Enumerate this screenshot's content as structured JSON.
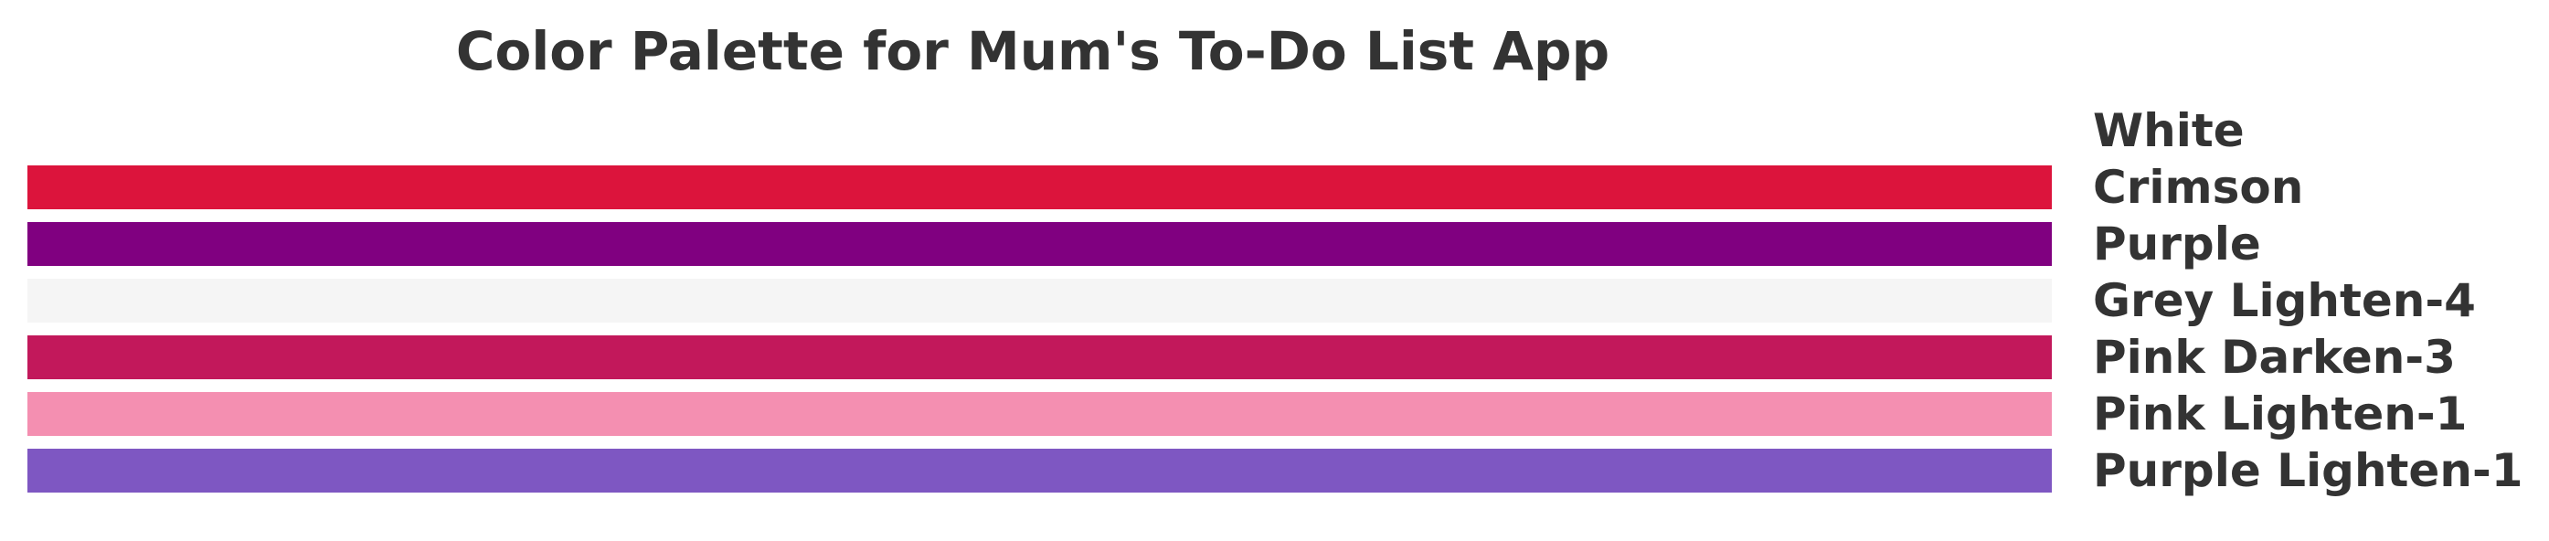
{
  "chart_data": {
    "type": "bar",
    "title": "Color Palette for Mum's To-Do List App",
    "orientation": "horizontal",
    "grid": false,
    "legend": "none",
    "categories": [
      "White",
      "Crimson",
      "Purple",
      "Grey Lighten-4",
      "Pink Darken-3",
      "Pink Lighten-1",
      "Purple Lighten-1"
    ],
    "values": [
      1,
      1,
      1,
      1,
      1,
      1,
      1
    ],
    "colors": [
      "#ffffff",
      "#dc143c",
      "#800080",
      "#f5f5f5",
      "#c2185b",
      "#f48fb1",
      "#7e57c2"
    ],
    "xlim": [
      0,
      1
    ]
  }
}
